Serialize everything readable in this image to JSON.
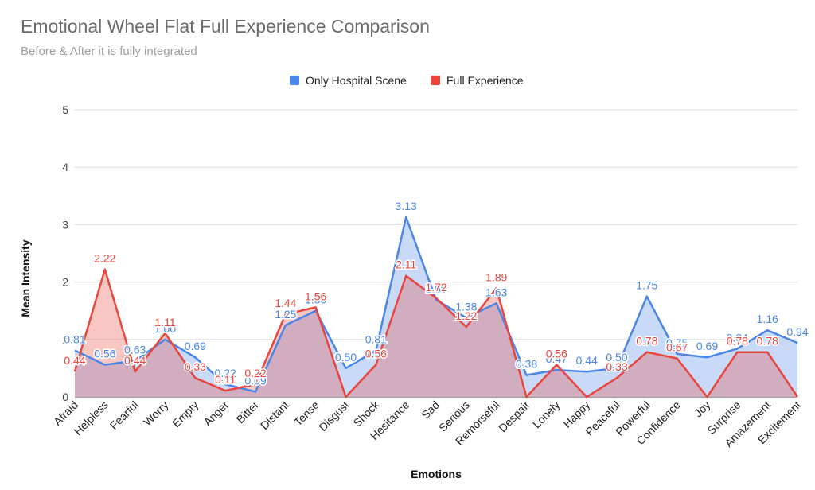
{
  "title": "Emotional Wheel Flat Full Experience Comparison",
  "subtitle": "Before & After it is fully integrated",
  "colors": {
    "series_a": "#4a86e8",
    "series_a_fill": "#c9daf8",
    "series_b": "#e8453c",
    "series_b_fill": "#e8453c",
    "grid": "#dddddd",
    "axis": "#333333"
  },
  "chart_data": {
    "type": "area",
    "title": "Emotional Wheel Flat Full Experience Comparison",
    "subtitle": "Before & After it is fully integrated",
    "xlabel": "Emotions",
    "ylabel": "Mean Intensity",
    "ylim": [
      0,
      5
    ],
    "yticks": [
      "0",
      "1",
      "2",
      "3",
      "4",
      "5"
    ],
    "grid": true,
    "legend_position": "top-center",
    "categories": [
      "Afraid",
      "Helpless",
      "Fearful",
      "Worry",
      "Empty",
      "Anger",
      "Bitter",
      "Distant",
      "Tense",
      "Disgust",
      "Shock",
      "Hesitance",
      "Sad",
      "Serious",
      "Remorseful",
      "Despair",
      "Lonely",
      "Happy",
      "Peaceful",
      "Powerful",
      "Confidence",
      "Joy",
      "Surprise",
      "Amazement",
      "Excitement"
    ],
    "series": [
      {
        "name": "Only Hospital Scene",
        "values": [
          0.81,
          0.56,
          0.63,
          1.0,
          0.69,
          0.22,
          0.09,
          1.25,
          1.5,
          0.5,
          0.81,
          3.13,
          1.69,
          1.38,
          1.63,
          0.38,
          0.47,
          0.44,
          0.5,
          1.75,
          0.75,
          0.69,
          0.84,
          1.16,
          0.94
        ],
        "labels": [
          "0.81",
          "0.56",
          "0.63",
          "1.00",
          "0.69",
          "0.22",
          "0.09",
          "1.25",
          "1.50",
          "0.50",
          "0.81",
          "3.13",
          "1.69",
          "1.38",
          "1.63",
          "0.38",
          "0.47",
          "0.44",
          "0.50",
          "1.75",
          "0.75",
          "0.69",
          "0.84",
          "1.16",
          "0.94"
        ]
      },
      {
        "name": "Full Experience",
        "values": [
          0.44,
          2.22,
          0.44,
          1.11,
          0.33,
          0.11,
          0.22,
          1.44,
          1.56,
          0,
          0.56,
          2.11,
          1.72,
          1.22,
          1.89,
          0,
          0.56,
          0,
          0.33,
          0.78,
          0.67,
          0,
          0.78,
          0.78,
          0
        ],
        "labels": [
          "0.44",
          "2.22",
          "0.44",
          "1.11",
          "0.33",
          "0.11",
          "0.22",
          "1.44",
          "1.56",
          "",
          "0.56",
          "2.11",
          "1.72",
          "1.22",
          "1.89",
          "",
          "0.56",
          "",
          "0.33",
          "0.78",
          "0.67",
          "",
          "0.78",
          "0.78",
          ""
        ]
      }
    ]
  }
}
